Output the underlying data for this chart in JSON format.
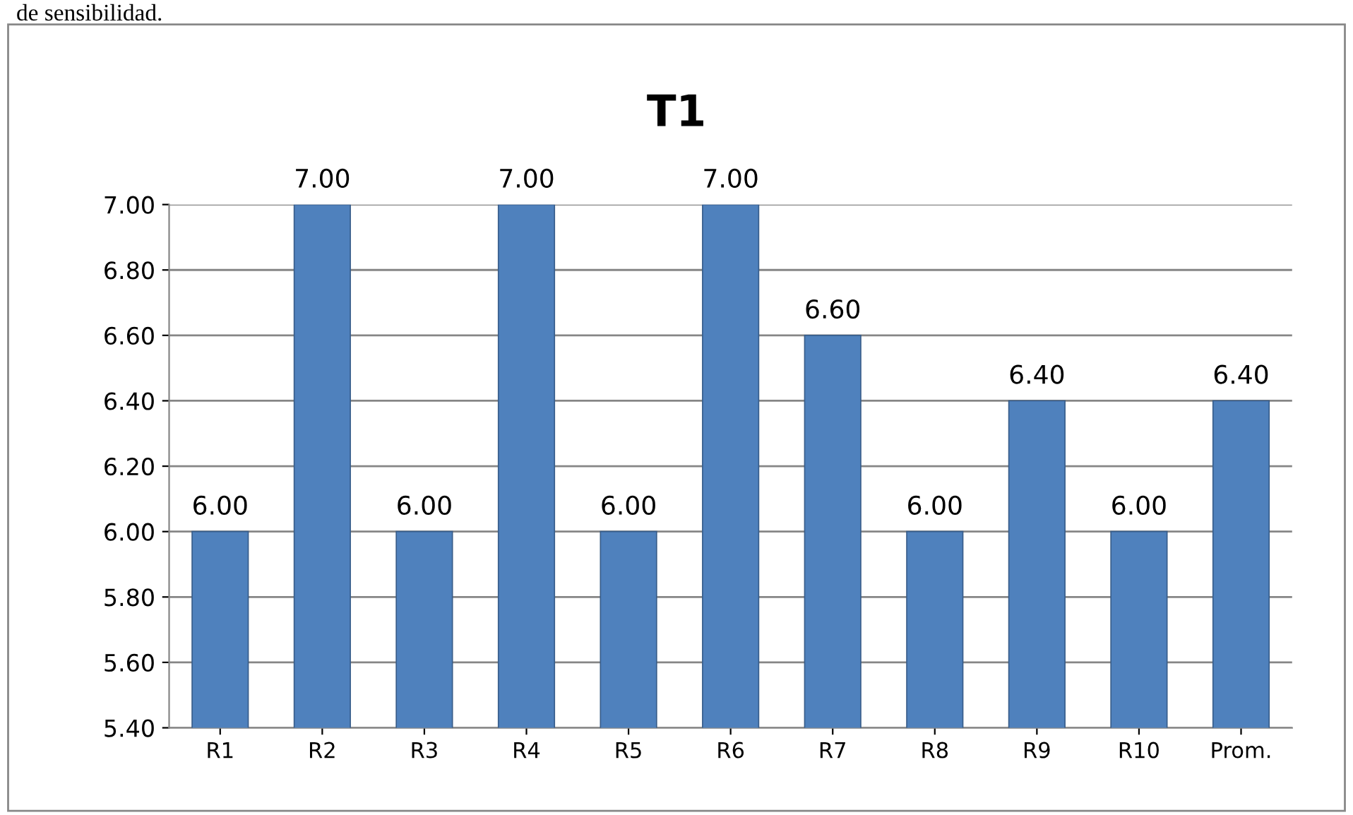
{
  "chart_data": {
    "type": "bar",
    "title": "T1",
    "categories": [
      "R1",
      "R2",
      "R3",
      "R4",
      "R5",
      "R6",
      "R7",
      "R8",
      "R9",
      "R10",
      "Prom."
    ],
    "values": [
      6.0,
      7.0,
      6.0,
      7.0,
      6.0,
      7.0,
      6.6,
      6.0,
      6.4,
      6.0,
      6.4
    ],
    "value_labels": [
      "6.00",
      "7.00",
      "6.00",
      "7.00",
      "6.00",
      "7.00",
      "6.60",
      "6.00",
      "6.40",
      "6.00",
      "6.40"
    ],
    "color": "#4f81bd",
    "ylim": [
      5.4,
      7.0
    ],
    "yticks": [
      {
        "value": 5.4,
        "label": "5.40"
      },
      {
        "value": 5.6,
        "label": "5.60"
      },
      {
        "value": 5.8,
        "label": "5.80"
      },
      {
        "value": 6.0,
        "label": "6.00"
      },
      {
        "value": 6.2,
        "label": "6.20"
      },
      {
        "value": 6.4,
        "label": "6.40"
      },
      {
        "value": 6.6,
        "label": "6.60"
      },
      {
        "value": 6.8,
        "label": "6.80"
      },
      {
        "value": 7.0,
        "label": "7.00"
      }
    ],
    "grid": "y",
    "annotations": [
      "de sensibilidad."
    ]
  }
}
